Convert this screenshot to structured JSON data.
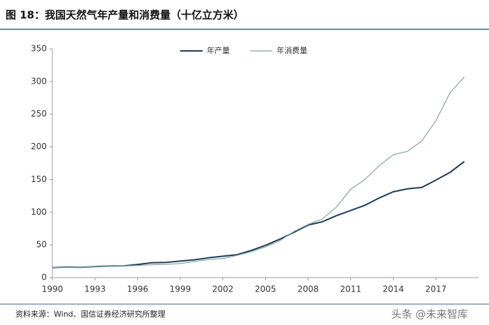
{
  "chart_data": {
    "type": "line",
    "title": "图 18：我国天然气年产量和消费量（十亿立方米）",
    "x": [
      1990,
      1991,
      1992,
      1993,
      1994,
      1995,
      1996,
      1997,
      1998,
      1999,
      2000,
      2001,
      2002,
      2003,
      2004,
      2005,
      2006,
      2007,
      2008,
      2009,
      2010,
      2011,
      2012,
      2013,
      2014,
      2015,
      2016,
      2017,
      2018,
      2019
    ],
    "series": [
      {
        "name": "年产量",
        "color": "#1f3a5a",
        "values": [
          15.3,
          16.1,
          15.8,
          16.8,
          17.6,
          17.9,
          20.1,
          22.7,
          23.3,
          25.2,
          27.2,
          30.3,
          32.7,
          35.0,
          41.5,
          49.3,
          58.6,
          69.2,
          80.3,
          85.3,
          94.8,
          102.7,
          110.6,
          121.8,
          131.2,
          135.7,
          137.9,
          149.2,
          161.0,
          177.6
        ]
      },
      {
        "name": "年消费量",
        "color": "#7fa8a0",
        "values": [
          15.3,
          16.0,
          15.9,
          16.8,
          17.4,
          17.7,
          18.5,
          19.6,
          20.3,
          21.4,
          24.5,
          27.4,
          29.2,
          33.9,
          39.7,
          46.8,
          56.1,
          70.5,
          81.3,
          89.5,
          108.0,
          135.0,
          150.0,
          171.0,
          188.0,
          193.0,
          209.0,
          240.0,
          283.0,
          307.0
        ]
      }
    ],
    "xlim": [
      1990,
      2020
    ],
    "xticks": [
      1990,
      1993,
      1996,
      1999,
      2002,
      2005,
      2008,
      2011,
      2014,
      2017
    ],
    "ylim": [
      0,
      350
    ],
    "yticks": [
      0,
      50,
      100,
      150,
      200,
      250,
      300,
      350
    ],
    "grid": false,
    "legend": "top"
  },
  "source": "资料来源：Wind、国信证券经济研究所整理",
  "watermark": "头条 @未来智库"
}
